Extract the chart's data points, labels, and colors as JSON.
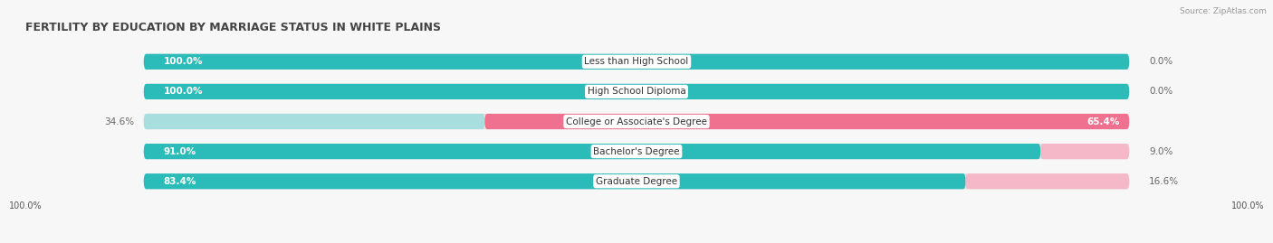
{
  "title": "FERTILITY BY EDUCATION BY MARRIAGE STATUS IN WHITE PLAINS",
  "source": "Source: ZipAtlas.com",
  "categories": [
    "Less than High School",
    "High School Diploma",
    "College or Associate's Degree",
    "Bachelor's Degree",
    "Graduate Degree"
  ],
  "married": [
    100.0,
    100.0,
    34.6,
    91.0,
    83.4
  ],
  "unmarried": [
    0.0,
    0.0,
    65.4,
    9.0,
    16.6
  ],
  "color_married": "#2bbcb9",
  "color_married_light": "#a8dedd",
  "color_unmarried": "#f07090",
  "color_unmarried_light": "#f5b8c8",
  "bg_color": "#f0f0f0",
  "bar_bg_color": "#e0e0e0",
  "fig_bg": "#f7f7f7",
  "title_fontsize": 9,
  "label_fontsize": 7.5,
  "cat_fontsize": 7.5,
  "legend_fontsize": 8,
  "bar_height": 0.52,
  "bar_gap": 0.14
}
